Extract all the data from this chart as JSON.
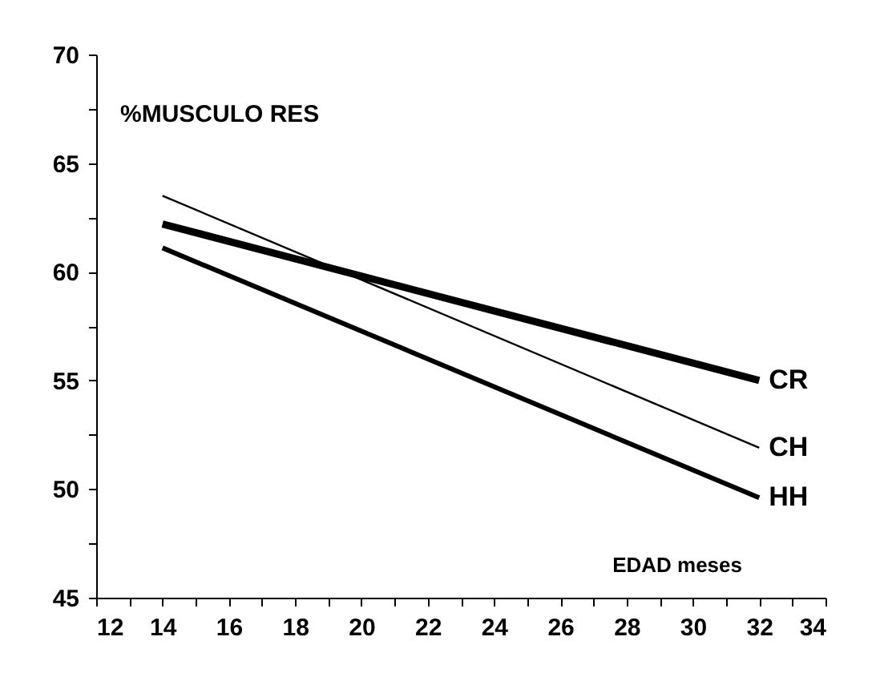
{
  "chart_data": {
    "type": "line",
    "xlabel": "EDAD meses",
    "ylabel": "%MUSCULO RES",
    "x": [
      14,
      32
    ],
    "series": [
      {
        "name": "CR",
        "color": "#000000",
        "values": [
          62.2,
          55.0
        ]
      },
      {
        "name": "CH",
        "color": "#000000",
        "values": [
          63.5,
          51.9
        ]
      },
      {
        "name": "HH",
        "color": "#000000",
        "values": [
          61.1,
          49.6
        ]
      }
    ],
    "xlim": [
      12,
      34
    ],
    "xticks": [
      12,
      {
        "value": 13,
        "label": null
      },
      14,
      {
        "value": 15,
        "label": null
      },
      16,
      {
        "value": 17,
        "label": null
      },
      18,
      {
        "value": 19,
        "label": null
      },
      20,
      {
        "value": 21,
        "label": null
      },
      22,
      {
        "value": 23,
        "label": null
      },
      24,
      {
        "value": 25,
        "label": null
      },
      26,
      {
        "value": 27,
        "label": null
      },
      28,
      {
        "value": 29,
        "label": null
      },
      30,
      {
        "value": 31,
        "label": null
      },
      32,
      {
        "value": 33,
        "label": null
      },
      34
    ],
    "ylim": [
      45,
      70
    ],
    "yticks": [
      45,
      {
        "value": 47.5,
        "label": null
      },
      50,
      {
        "value": 52.5,
        "label": null
      },
      55,
      {
        "value": 57.5,
        "label": null
      },
      60,
      {
        "value": 62.5,
        "label": null
      },
      65,
      {
        "value": 67.5,
        "label": null
      },
      70
    ],
    "grid": false,
    "legend": false,
    "marker": "none",
    "line_style": "solid"
  }
}
